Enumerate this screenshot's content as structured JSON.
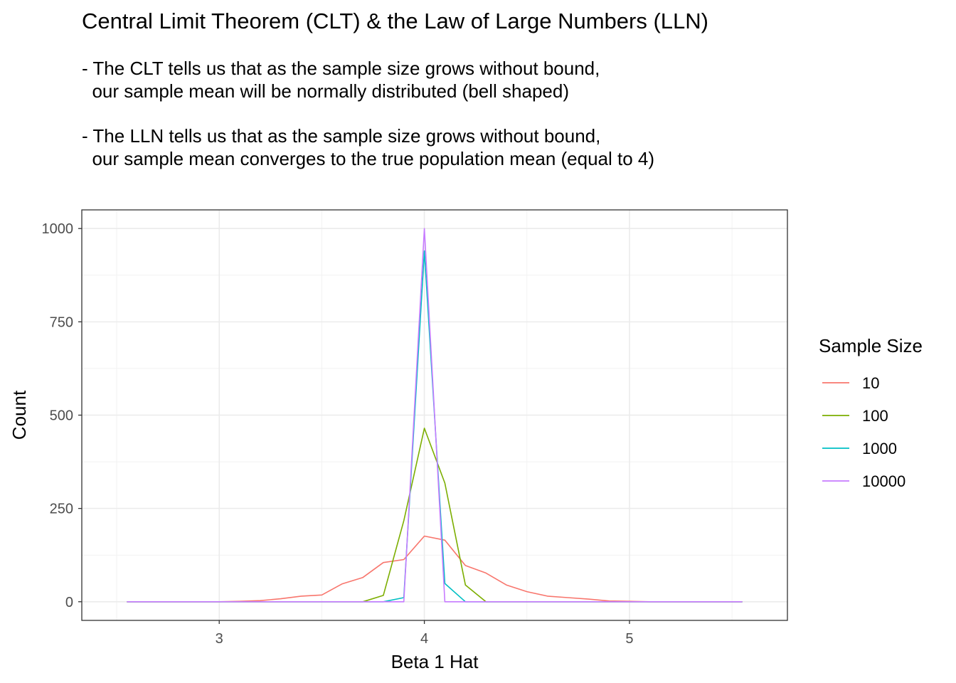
{
  "chart_data": {
    "type": "line",
    "title": "Central Limit Theorem (CLT) & the Law of Large Numbers (LLN)",
    "subtitle_lines": [
      "- The CLT tells us that as the sample size grows without bound,",
      "  our sample mean will be normally distributed (bell shaped)",
      "- The LLN tells us that as the sample size grows without bound,",
      "  our sample mean converges to the true population mean (equal to 4)"
    ],
    "xlabel": "Beta 1 Hat",
    "ylabel": "Count",
    "xlim": [
      2.33,
      5.77
    ],
    "ylim": [
      -50,
      1050
    ],
    "x_ticks": [
      3,
      4,
      5
    ],
    "y_ticks": [
      0,
      250,
      500,
      750,
      1000
    ],
    "grid": true,
    "legend_position": "right",
    "legend_title": "Sample Size",
    "x": [
      2.55,
      2.6,
      2.7,
      2.8,
      2.9,
      3.0,
      3.1,
      3.2,
      3.3,
      3.4,
      3.5,
      3.6,
      3.7,
      3.8,
      3.9,
      4.0,
      4.1,
      4.2,
      4.3,
      4.4,
      4.5,
      4.6,
      4.7,
      4.8,
      4.9,
      5.0,
      5.1,
      5.2,
      5.3,
      5.4,
      5.55
    ],
    "series": [
      {
        "name": "10",
        "color": "#F8766D",
        "values": [
          0,
          0,
          0,
          0,
          0,
          0,
          1,
          3,
          8,
          15,
          18,
          48,
          65,
          105,
          113,
          176,
          165,
          97,
          77,
          45,
          27,
          15,
          11,
          7,
          2,
          1,
          0,
          0,
          0,
          0,
          0
        ]
      },
      {
        "name": "100",
        "color": "#7CAE00",
        "values": [
          0,
          0,
          0,
          0,
          0,
          0,
          0,
          0,
          0,
          0,
          0,
          0,
          0,
          17,
          217,
          465,
          318,
          45,
          0,
          0,
          0,
          0,
          0,
          0,
          0,
          0,
          0,
          0,
          0,
          0,
          0
        ]
      },
      {
        "name": "1000",
        "color": "#00BFC4",
        "values": [
          0,
          0,
          0,
          0,
          0,
          0,
          0,
          0,
          0,
          0,
          0,
          0,
          0,
          0,
          11,
          940,
          49,
          0,
          0,
          0,
          0,
          0,
          0,
          0,
          0,
          0,
          0,
          0,
          0,
          0,
          0
        ]
      },
      {
        "name": "10000",
        "color": "#C77CFF",
        "values": [
          0,
          0,
          0,
          0,
          0,
          0,
          0,
          0,
          0,
          0,
          0,
          0,
          0,
          0,
          0,
          1000,
          0,
          0,
          0,
          0,
          0,
          0,
          0,
          0,
          0,
          0,
          0,
          0,
          0,
          0,
          0
        ]
      }
    ]
  }
}
